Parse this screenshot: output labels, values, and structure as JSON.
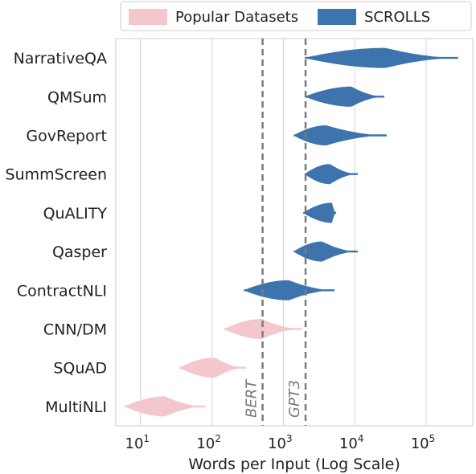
{
  "chart_data": {
    "type": "violin",
    "title": "",
    "xlabel": "Words per Input (Log Scale)",
    "ylabel": "",
    "x_scale": "log10",
    "xlim": [
      4.5,
      450000
    ],
    "x_ticks": [
      {
        "value": 10,
        "base": "10",
        "exp": "1"
      },
      {
        "value": 100,
        "base": "10",
        "exp": "2"
      },
      {
        "value": 1000,
        "base": "10",
        "exp": "3"
      },
      {
        "value": 10000,
        "base": "10",
        "exp": "4"
      },
      {
        "value": 100000,
        "base": "10",
        "exp": "5"
      }
    ],
    "grid": "vertical",
    "legend": {
      "position": "top",
      "entries": [
        {
          "name": "Popular Datasets",
          "color": "#f4c7cc"
        },
        {
          "name": "SCROLLS",
          "color": "#3d74ad"
        }
      ]
    },
    "reference_lines": [
      {
        "label": "BERT",
        "x": 512
      },
      {
        "label": "GPT3",
        "x": 2048
      }
    ],
    "categories": [
      "NarrativeQA",
      "QMSum",
      "GovReport",
      "SummScreen",
      "QuALITY",
      "Qasper",
      "ContractNLI",
      "CNN/DM",
      "SQuAD",
      "MultiNLI"
    ],
    "series": [
      {
        "name": "NarrativeQA",
        "group": "SCROLLS",
        "min": 2000,
        "max": 280000,
        "mode": 27000
      },
      {
        "name": "QMSum",
        "group": "SCROLLS",
        "min": 2000,
        "max": 26000,
        "mode": 9000
      },
      {
        "name": "GovReport",
        "group": "SCROLLS",
        "min": 1400,
        "max": 28000,
        "mode": 4000
      },
      {
        "name": "SummScreen",
        "group": "SCROLLS",
        "min": 2000,
        "max": 11000,
        "mode": 4500
      },
      {
        "name": "QuALITY",
        "group": "SCROLLS",
        "min": 1900,
        "max": 5500,
        "mode": 4800
      },
      {
        "name": "Qasper",
        "group": "SCROLLS",
        "min": 1400,
        "max": 11000,
        "mode": 3500
      },
      {
        "name": "ContractNLI",
        "group": "SCROLLS",
        "min": 280,
        "max": 5200,
        "mode": 1200
      },
      {
        "name": "CNN/DM",
        "group": "Popular Datasets",
        "min": 150,
        "max": 1800,
        "mode": 500
      },
      {
        "name": "SQuAD",
        "group": "Popular Datasets",
        "min": 35,
        "max": 300,
        "mode": 110
      },
      {
        "name": "MultiNLI",
        "group": "Popular Datasets",
        "min": 6,
        "max": 80,
        "mode": 22
      }
    ]
  }
}
